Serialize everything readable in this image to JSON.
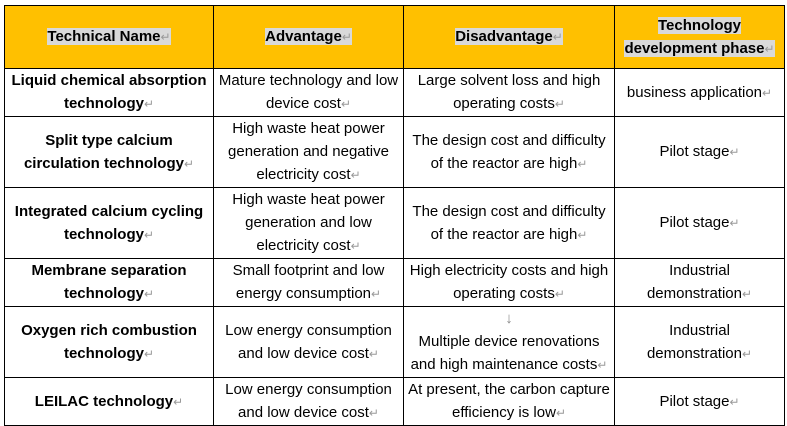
{
  "table": {
    "header": [
      "Technical Name",
      "Advantage",
      "Disadvantage",
      "Technology development phase"
    ],
    "rows": [
      [
        "Liquid chemical absorption technology",
        "Mature technology and low device cost",
        "Large solvent loss and high operating costs",
        "business application"
      ],
      [
        "Split type calcium circulation technology",
        "High waste heat power generation and negative electricity cost",
        "The design cost and difficulty of the reactor are high",
        "Pilot stage"
      ],
      [
        "Integrated calcium cycling technology",
        "High waste heat power generation and low electricity cost",
        "The design cost and difficulty of the reactor are high",
        "Pilot stage"
      ],
      [
        "Membrane separation technology",
        "Small footprint and low energy consumption",
        "High electricity costs and high operating costs",
        "Industrial demonstration"
      ],
      [
        "Oxygen rich combustion technology",
        "Low energy consumption and low device cost",
        "Multiple device renovations and high maintenance costs",
        "Industrial demonstration"
      ],
      [
        "LEILAC technology",
        "Low energy consumption and low device cost",
        "At present, the carbon capture efficiency is low",
        "Pilot stage"
      ]
    ]
  }
}
